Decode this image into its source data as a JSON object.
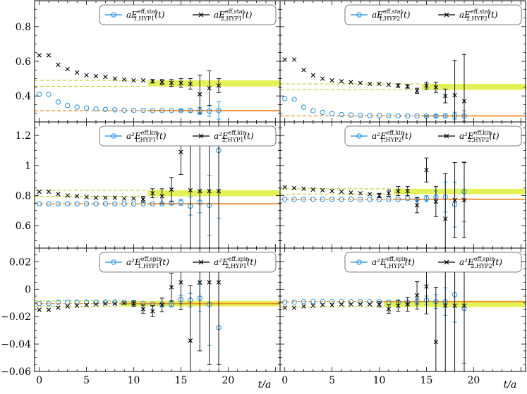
{
  "colors": {
    "ground": "#1f8fe0",
    "excited": "#000000",
    "fit_line": "#f08a24",
    "band": "#dfee3a",
    "band_edge": "#b9cc10",
    "frame": "#000000"
  },
  "axis": {
    "x_label": "t/a",
    "x_ticks": [
      "0",
      "5",
      "10",
      "15",
      "20"
    ],
    "x_tick_values": [
      0,
      5,
      10,
      15,
      20
    ],
    "xlim": [
      -0.5,
      25.5
    ]
  },
  "chart_data": [
    {
      "type": "scatter",
      "title": "aE_eff_stat HYP1",
      "row": 0,
      "col": 0,
      "ylim": [
        0.25,
        0.95
      ],
      "y_ticks": [
        "0.4",
        "0.6",
        "0.8"
      ],
      "y_tick_values": [
        0.4,
        0.6,
        0.8
      ],
      "legend": {
        "prefix": "aE",
        "sup": "eff,stat",
        "s1": "1,HYP1",
        "s2": "2,HYP1",
        "arg": "(t)"
      },
      "ground_fit": 0.315,
      "excited_band": [
        0.455,
        0.49
      ],
      "fit_start": 12,
      "series": [
        {
          "name": "ground",
          "x": [
            0,
            1,
            2,
            3,
            4,
            5,
            6,
            7,
            8,
            9,
            10,
            11,
            12,
            13,
            14,
            15,
            16,
            17,
            18,
            19
          ],
          "y": [
            0.41,
            0.41,
            0.365,
            0.345,
            0.335,
            0.33,
            0.325,
            0.322,
            0.32,
            0.318,
            0.317,
            0.317,
            0.316,
            0.316,
            0.316,
            0.316,
            0.316,
            0.314,
            0.313,
            0.316
          ],
          "err": [
            0,
            0,
            0,
            0,
            0,
            0,
            0,
            0,
            0,
            0,
            0,
            0,
            0,
            0,
            0,
            0.005,
            0.01,
            0.02,
            0.03,
            0.05
          ]
        },
        {
          "name": "excited",
          "x": [
            0,
            1,
            2,
            3,
            4,
            5,
            6,
            7,
            8,
            9,
            10,
            11,
            12,
            13,
            14,
            15,
            16,
            17,
            18,
            19
          ],
          "y": [
            0.635,
            0.635,
            0.58,
            0.555,
            0.535,
            0.52,
            0.515,
            0.51,
            0.5,
            0.495,
            0.49,
            0.49,
            0.485,
            0.48,
            0.475,
            0.475,
            0.47,
            0.41,
            0.445,
            0.46
          ],
          "err": [
            0,
            0,
            0,
            0,
            0,
            0,
            0,
            0,
            0,
            0,
            0,
            0,
            0.01,
            0.015,
            0.02,
            0.025,
            0.03,
            0.11,
            0.1,
            0.04
          ]
        }
      ]
    },
    {
      "type": "scatter",
      "title": "aE_eff_stat HYP2",
      "row": 0,
      "col": 1,
      "ylim": [
        0.25,
        0.95
      ],
      "y_ticks": [],
      "y_tick_values": [
        0.4,
        0.6,
        0.8
      ],
      "legend": {
        "prefix": "aE",
        "sup": "eff,stat",
        "s1": "1,HYP2",
        "s2": "2,HYP2",
        "arg": "(t)"
      },
      "ground_fit": 0.285,
      "excited_band": [
        0.435,
        0.47
      ],
      "fit_start": 15,
      "series": [
        {
          "name": "ground",
          "x": [
            0,
            1,
            2,
            3,
            4,
            5,
            6,
            7,
            8,
            9,
            10,
            11,
            12,
            13,
            14,
            15,
            16,
            17,
            18,
            19
          ],
          "y": [
            0.385,
            0.38,
            0.335,
            0.315,
            0.305,
            0.298,
            0.293,
            0.29,
            0.288,
            0.287,
            0.286,
            0.286,
            0.285,
            0.285,
            0.285,
            0.284,
            0.284,
            0.285,
            0.286,
            0.285
          ],
          "err": [
            0,
            0,
            0,
            0,
            0,
            0,
            0,
            0,
            0,
            0,
            0,
            0,
            0,
            0,
            0,
            0.005,
            0.008,
            0.012,
            0.02,
            0.03
          ]
        },
        {
          "name": "excited",
          "x": [
            0,
            1,
            2,
            3,
            4,
            5,
            6,
            7,
            8,
            9,
            10,
            11,
            12,
            13,
            14,
            15,
            16,
            17,
            18,
            19
          ],
          "y": [
            0.61,
            0.61,
            0.55,
            0.52,
            0.5,
            0.49,
            0.485,
            0.48,
            0.475,
            0.47,
            0.47,
            0.465,
            0.46,
            0.455,
            0.43,
            0.46,
            0.45,
            0.4,
            0.405,
            0.37
          ],
          "err": [
            0,
            0,
            0,
            0,
            0,
            0,
            0,
            0,
            0,
            0,
            0,
            0,
            0.01,
            0.01,
            0.015,
            0.02,
            0.03,
            0.04,
            0.2,
            0.27
          ]
        }
      ]
    },
    {
      "type": "scatter",
      "title": "a2E_eff_kin HYP1",
      "row": 1,
      "col": 0,
      "ylim": [
        0.45,
        1.29
      ],
      "y_ticks": [
        "0.6",
        "0.8",
        "1",
        "1.2"
      ],
      "y_tick_values": [
        0.6,
        0.8,
        1.0,
        1.2
      ],
      "legend": {
        "prefix": "a²E",
        "sup": "eff,kin",
        "s1": "1,HYP1",
        "s2": "2,HYP1",
        "arg": "(t)"
      },
      "ground_fit": 0.745,
      "excited_band": [
        0.795,
        0.835
      ],
      "fit_start": 12,
      "series": [
        {
          "name": "ground",
          "x": [
            0,
            1,
            2,
            3,
            4,
            5,
            6,
            7,
            8,
            9,
            10,
            11,
            12,
            13,
            14,
            15,
            16,
            17,
            18,
            19
          ],
          "y": [
            0.745,
            0.745,
            0.745,
            0.745,
            0.745,
            0.745,
            0.745,
            0.745,
            0.745,
            0.745,
            0.745,
            0.745,
            0.745,
            0.745,
            0.75,
            0.755,
            0.73,
            0.755,
            0.735,
            1.1
          ],
          "err": [
            0,
            0,
            0,
            0,
            0,
            0,
            0,
            0,
            0,
            0,
            0,
            0,
            0,
            0,
            0.01,
            0.02,
            0.06,
            0.07,
            0.2,
            0.45
          ]
        },
        {
          "name": "excited",
          "x": [
            0,
            1,
            2,
            3,
            4,
            5,
            6,
            7,
            8,
            9,
            10,
            11,
            12,
            13,
            14,
            15,
            16,
            17,
            18,
            19
          ],
          "y": [
            0.825,
            0.825,
            0.81,
            0.8,
            0.795,
            0.79,
            0.785,
            0.785,
            0.785,
            0.78,
            0.78,
            0.775,
            0.815,
            0.795,
            0.84,
            1.09,
            0.835,
            0.83,
            0.83,
            0.83
          ],
          "err": [
            0,
            0,
            0,
            0,
            0,
            0,
            0,
            0,
            0,
            0,
            0,
            0.02,
            0.03,
            0.05,
            0.08,
            0.15,
            0.4,
            0.5,
            0.55,
            0.55
          ]
        }
      ]
    },
    {
      "type": "scatter",
      "title": "a2E_eff_kin HYP2",
      "row": 1,
      "col": 1,
      "ylim": [
        0.45,
        1.29
      ],
      "y_ticks": [],
      "y_tick_values": [
        0.6,
        0.8,
        1.0,
        1.2
      ],
      "legend": {
        "prefix": "a²E",
        "sup": "eff,kin",
        "s1": "1,HYP2",
        "s2": "2,HYP2",
        "arg": "(t)"
      },
      "ground_fit": 0.775,
      "excited_band": [
        0.81,
        0.845
      ],
      "fit_start": 12,
      "series": [
        {
          "name": "ground",
          "x": [
            0,
            1,
            2,
            3,
            4,
            5,
            6,
            7,
            8,
            9,
            10,
            11,
            12,
            13,
            14,
            15,
            16,
            17,
            18,
            19
          ],
          "y": [
            0.775,
            0.775,
            0.775,
            0.775,
            0.775,
            0.775,
            0.775,
            0.775,
            0.775,
            0.775,
            0.775,
            0.775,
            0.775,
            0.78,
            0.775,
            0.78,
            0.79,
            0.79,
            0.74,
            0.825
          ],
          "err": [
            0,
            0,
            0,
            0,
            0,
            0,
            0,
            0,
            0,
            0,
            0,
            0,
            0,
            0,
            0.01,
            0.02,
            0.04,
            0.1,
            0.15,
            0.2
          ]
        },
        {
          "name": "excited",
          "x": [
            0,
            1,
            2,
            3,
            4,
            5,
            6,
            7,
            8,
            9,
            10,
            11,
            12,
            13,
            14,
            15,
            16,
            17,
            18,
            19
          ],
          "y": [
            0.855,
            0.85,
            0.845,
            0.84,
            0.835,
            0.83,
            0.825,
            0.82,
            0.815,
            0.81,
            0.8,
            0.815,
            0.83,
            0.83,
            0.735,
            0.97,
            0.76,
            0.645,
            0.77,
            0.77
          ],
          "err": [
            0,
            0,
            0,
            0,
            0,
            0,
            0,
            0,
            0,
            0,
            0.015,
            0.02,
            0.03,
            0.03,
            0.05,
            0.08,
            0.1,
            0.3,
            0.25,
            0.25
          ]
        }
      ]
    },
    {
      "type": "scatter",
      "title": "a2E_eff_spin HYP1",
      "row": 2,
      "col": 0,
      "ylim": [
        -0.06,
        0.03
      ],
      "y_ticks": [
        "−0.06",
        "−0.04",
        "−0.02",
        "0",
        "0.02"
      ],
      "y_tick_values": [
        -0.06,
        -0.04,
        -0.02,
        0,
        0.02
      ],
      "legend": {
        "prefix": "a²E",
        "sup": "eff,spin",
        "s1": "1,HYP1",
        "s2": "2,HYP1",
        "arg": "(t)"
      },
      "ground_fit": -0.0105,
      "excited_band": [
        -0.0125,
        -0.0085
      ],
      "fit_start": 9,
      "series": [
        {
          "name": "ground",
          "x": [
            0,
            1,
            2,
            3,
            4,
            5,
            6,
            7,
            8,
            9,
            10,
            11,
            12,
            13,
            14,
            15,
            16,
            17,
            18,
            19
          ],
          "y": [
            -0.0105,
            -0.0105,
            -0.0095,
            -0.0095,
            -0.0095,
            -0.0095,
            -0.0095,
            -0.0095,
            -0.0095,
            -0.0095,
            -0.01,
            -0.0105,
            -0.011,
            -0.011,
            -0.011,
            -0.0075,
            -0.008,
            -0.0065,
            -0.011,
            -0.028
          ],
          "err": [
            0,
            0,
            0,
            0,
            0,
            0,
            0,
            0,
            0,
            0,
            0,
            0,
            0,
            0,
            0.002,
            0.003,
            0.005,
            0.01,
            0.03,
            0.05
          ]
        },
        {
          "name": "excited",
          "x": [
            0,
            1,
            2,
            3,
            4,
            5,
            6,
            7,
            8,
            9,
            10,
            11,
            12,
            13,
            14,
            15,
            16,
            17,
            18,
            19
          ],
          "y": [
            -0.015,
            -0.015,
            -0.0135,
            -0.0125,
            -0.012,
            -0.0115,
            -0.011,
            -0.0105,
            -0.0105,
            -0.01,
            -0.0105,
            -0.0145,
            -0.016,
            -0.0115,
            0.0015,
            0.005,
            -0.0375,
            0.005,
            0.005,
            0.005
          ],
          "err": [
            0,
            0,
            0,
            0,
            0,
            0,
            0,
            0,
            0,
            0,
            0.002,
            0.003,
            0.004,
            0.005,
            0.01,
            0.02,
            0.04,
            0.05,
            0.06,
            0.06
          ]
        }
      ]
    },
    {
      "type": "scatter",
      "title": "a2E_eff_spin HYP2",
      "row": 2,
      "col": 1,
      "ylim": [
        -0.06,
        0.03
      ],
      "y_ticks": [],
      "y_tick_values": [
        -0.06,
        -0.04,
        -0.02,
        0,
        0.02
      ],
      "legend": {
        "prefix": "a²E",
        "sup": "eff,spin",
        "s1": "1,HYP2",
        "s2": "2,HYP2",
        "arg": "(t)"
      },
      "ground_fit": -0.009,
      "excited_band": [
        -0.013,
        -0.009
      ],
      "fit_start": 11,
      "series": [
        {
          "name": "ground",
          "x": [
            0,
            1,
            2,
            3,
            4,
            5,
            6,
            7,
            8,
            9,
            10,
            11,
            12,
            13,
            14,
            15,
            16,
            17,
            18,
            19
          ],
          "y": [
            -0.0095,
            -0.0095,
            -0.009,
            -0.009,
            -0.009,
            -0.009,
            -0.009,
            -0.009,
            -0.009,
            -0.009,
            -0.009,
            -0.0095,
            -0.0095,
            -0.0095,
            -0.009,
            -0.008,
            -0.009,
            -0.009,
            -0.004,
            -0.014
          ],
          "err": [
            0,
            0,
            0,
            0,
            0,
            0,
            0,
            0,
            0,
            0,
            0,
            0,
            0,
            0,
            0.002,
            0.003,
            0.005,
            0.01,
            0.02,
            0.04
          ]
        },
        {
          "name": "excited",
          "x": [
            0,
            1,
            2,
            3,
            4,
            5,
            6,
            7,
            8,
            9,
            10,
            11,
            12,
            13,
            14,
            15,
            16,
            17,
            18,
            19
          ],
          "y": [
            -0.0135,
            -0.0135,
            -0.0125,
            -0.012,
            -0.0115,
            -0.0115,
            -0.011,
            -0.011,
            -0.011,
            -0.011,
            -0.011,
            -0.0145,
            -0.012,
            -0.011,
            -0.0045,
            0.002,
            -0.0385,
            -0.012,
            -0.012,
            -0.012
          ],
          "err": [
            0,
            0,
            0,
            0,
            0,
            0,
            0,
            0,
            0,
            0,
            0.002,
            0.003,
            0.004,
            0.005,
            0.01,
            0.02,
            0.04,
            0.05,
            0.06,
            0.06
          ]
        }
      ]
    }
  ]
}
